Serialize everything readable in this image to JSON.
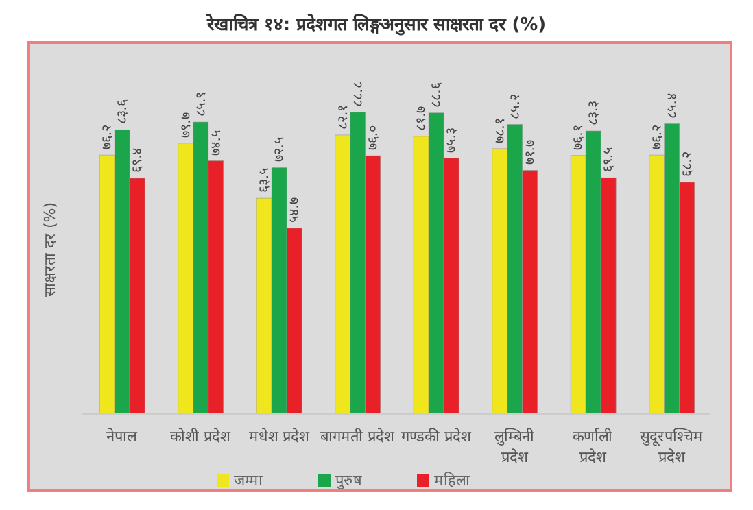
{
  "chart_data": {
    "type": "bar",
    "title": "रेखाचित्र १४: प्रदेशगत लिङ्गअनुसार साक्षरता दर (%)",
    "ylabel": "साक्षरता दर (%)",
    "categories": [
      "नेपाल",
      "कोशी प्रदेश",
      "मधेश प्रदेश",
      "बागमती प्रदेश",
      "गण्डकी प्रदेश",
      "लुम्बिनी प्रदेश",
      "कर्णाली प्रदेश",
      "सुदूरपश्चिम प्रदेश"
    ],
    "series": [
      {
        "name": "जम्मा",
        "color": "#f0e61e",
        "values": [
          76.2,
          79.7,
          63.5,
          82.1,
          81.7,
          78.1,
          76.1,
          76.2
        ],
        "value_labels": [
          "७६.२",
          "७९.७",
          "६३.५",
          "८२.१",
          "८१.७",
          "७८.१",
          "७६.१",
          "७६.२"
        ]
      },
      {
        "name": "पुरुष",
        "color": "#1ca64c",
        "values": [
          83.6,
          85.9,
          72.5,
          88.8,
          88.6,
          85.2,
          83.3,
          85.4
        ],
        "value_labels": [
          "८३.६",
          "८५.९",
          "७२.५",
          "८८.८",
          "८८.६",
          "८५.२",
          "८३.३",
          "८५.४"
        ]
      },
      {
        "name": "महिला",
        "color": "#e82028",
        "values": [
          69.4,
          74.5,
          54.7,
          76.0,
          75.3,
          71.7,
          69.5,
          68.2
        ],
        "value_labels": [
          "६९.४",
          "७४.५",
          "५४.७",
          "७६.०",
          "७५.३",
          "७१.७",
          "६९.५",
          "६८.२"
        ]
      }
    ],
    "legend": "bottom"
  }
}
